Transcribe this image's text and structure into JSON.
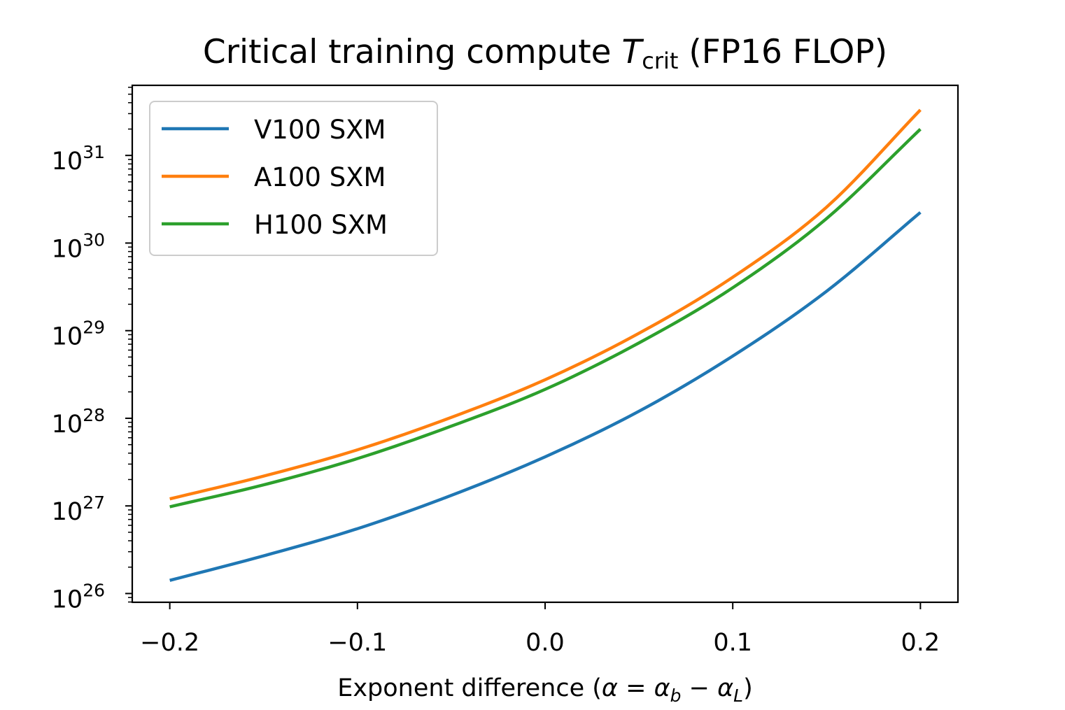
{
  "chart_data": {
    "type": "line",
    "title": {
      "prefix": "Critical training compute ",
      "symbol": "T",
      "subscript": "crit",
      "suffix": " (FP16 FLOP)"
    },
    "xlabel": {
      "prefix": "Exponent difference (",
      "alpha": "α",
      "equals": " = ",
      "alpha_b": "α",
      "b_sub": "b",
      "minus": " − ",
      "alpha_L": "α",
      "L_sub": "L",
      "suffix": ")"
    },
    "ylabel": "",
    "xlim": [
      -0.22,
      0.22
    ],
    "ylim_log10": [
      25.9,
      31.8
    ],
    "yscale": "log",
    "x_ticks": [
      -0.2,
      -0.1,
      0.0,
      0.1,
      0.2
    ],
    "x_tick_labels": [
      "−0.2",
      "−0.1",
      "0.0",
      "0.1",
      "0.2"
    ],
    "y_ticks_log10": [
      26,
      27,
      28,
      29,
      30,
      31
    ],
    "y_tick_base": "10",
    "y_tick_exponents": [
      "26",
      "27",
      "28",
      "29",
      "30",
      "31"
    ],
    "legend_position": "upper-left",
    "series": [
      {
        "name": "V100 SXM",
        "color": "#1f77b4",
        "x": [
          -0.2,
          -0.15,
          -0.1,
          -0.05,
          0.0,
          0.05,
          0.1,
          0.15,
          0.2
        ],
        "log10_values": [
          26.15,
          26.43,
          26.74,
          27.12,
          27.56,
          28.08,
          28.71,
          29.45,
          30.35
        ]
      },
      {
        "name": "A100 SXM",
        "color": "#ff7f0e",
        "x": [
          -0.2,
          -0.15,
          -0.1,
          -0.05,
          0.0,
          0.05,
          0.1,
          0.15,
          0.2
        ],
        "log10_values": [
          27.08,
          27.34,
          27.64,
          28.01,
          28.44,
          28.97,
          29.61,
          30.41,
          31.52
        ]
      },
      {
        "name": "H100 SXM",
        "color": "#2ca02c",
        "x": [
          -0.2,
          -0.15,
          -0.1,
          -0.05,
          0.0,
          0.05,
          0.1,
          0.15,
          0.2
        ],
        "log10_values": [
          26.99,
          27.24,
          27.54,
          27.91,
          28.33,
          28.86,
          29.49,
          30.28,
          31.3
        ]
      }
    ]
  }
}
